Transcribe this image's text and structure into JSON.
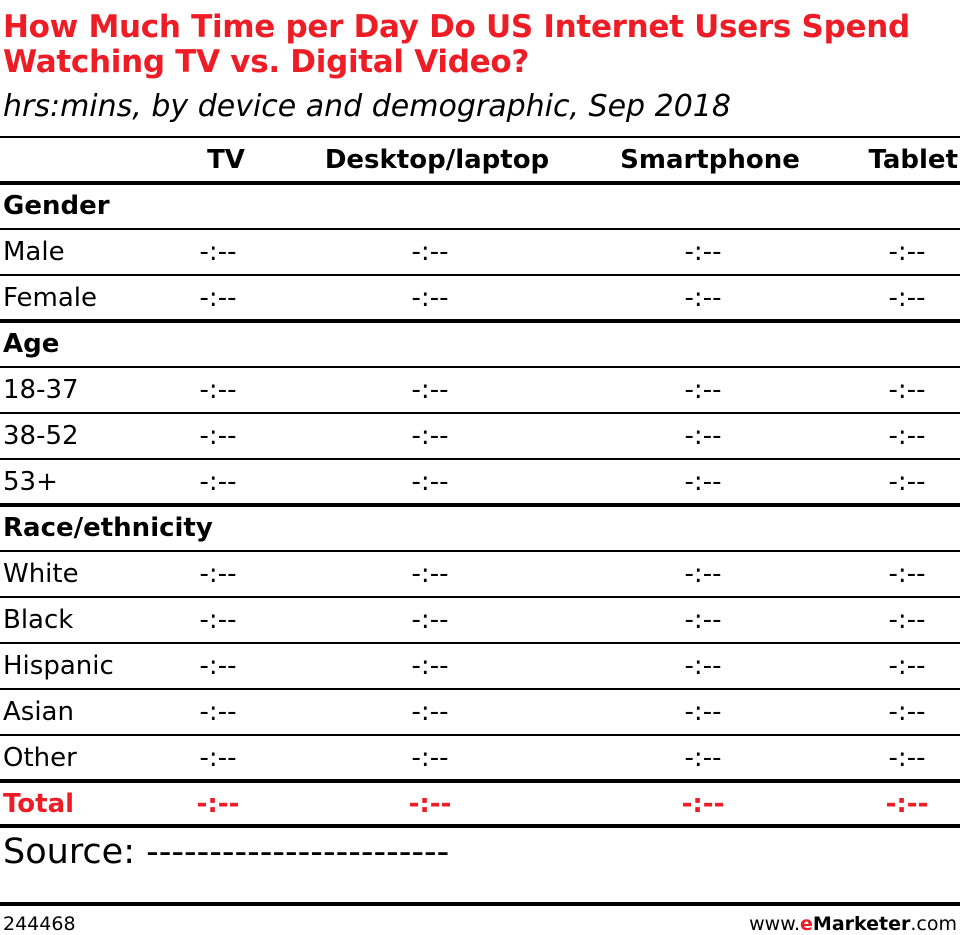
{
  "colors": {
    "accent": "#ee1c25",
    "text": "#000000"
  },
  "chart_data": {
    "type": "table",
    "title": "How Much Time per Day Do US Internet Users Spend Watching TV vs. Digital Video?",
    "subtitle": "hrs:mins, by device and demographic, Sep 2018",
    "columns": [
      "TV",
      "Desktop/laptop",
      "Smartphone",
      "Tablet"
    ],
    "sections": [
      {
        "name": "Gender",
        "rows": [
          {
            "label": "Male",
            "values": [
              "-:--",
              "-:--",
              "-:--",
              "-:--"
            ]
          },
          {
            "label": "Female",
            "values": [
              "-:--",
              "-:--",
              "-:--",
              "-:--"
            ]
          }
        ]
      },
      {
        "name": "Age",
        "rows": [
          {
            "label": "18-37",
            "values": [
              "-:--",
              "-:--",
              "-:--",
              "-:--"
            ]
          },
          {
            "label": "38-52",
            "values": [
              "-:--",
              "-:--",
              "-:--",
              "-:--"
            ]
          },
          {
            "label": "53+",
            "values": [
              "-:--",
              "-:--",
              "-:--",
              "-:--"
            ]
          }
        ]
      },
      {
        "name": "Race/ethnicity",
        "rows": [
          {
            "label": "White",
            "values": [
              "-:--",
              "-:--",
              "-:--",
              "-:--"
            ]
          },
          {
            "label": "Black",
            "values": [
              "-:--",
              "-:--",
              "-:--",
              "-:--"
            ]
          },
          {
            "label": "Hispanic",
            "values": [
              "-:--",
              "-:--",
              "-:--",
              "-:--"
            ]
          },
          {
            "label": "Asian",
            "values": [
              "-:--",
              "-:--",
              "-:--",
              "-:--"
            ]
          },
          {
            "label": "Other",
            "values": [
              "-:--",
              "-:--",
              "-:--",
              "-:--"
            ]
          }
        ]
      }
    ],
    "total": {
      "label": "Total",
      "values": [
        "-:--",
        "-:--",
        "-:--",
        "-:--"
      ]
    }
  },
  "source": "Source: ------------------------",
  "footer": {
    "chart_id": "244468",
    "site_prefix": "www.",
    "site_brand_e": "e",
    "site_brand_rest": "Marketer",
    "site_suffix": ".com"
  }
}
